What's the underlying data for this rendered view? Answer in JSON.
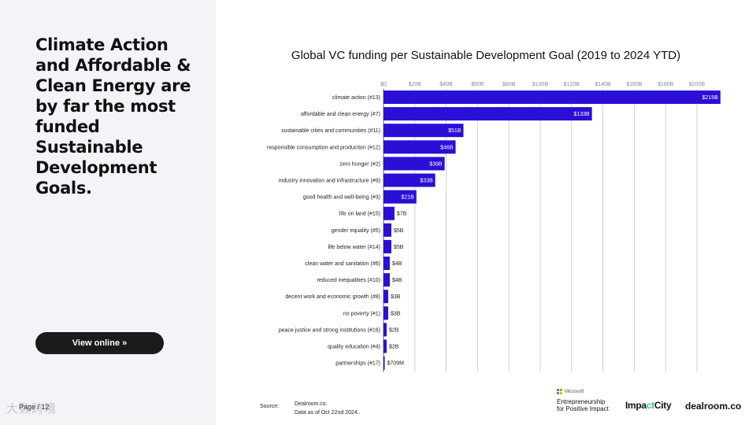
{
  "headline": "Climate Action and Affordable & Clean Energy are by far the most funded Sustainable Development Goals.",
  "view_online_label": "View online »",
  "page_number": "Page / 12",
  "watermark": "大数跨境",
  "source_label": "Source:",
  "source_lines": [
    "Dealroom.co.",
    "Data as of Oct 22nd 2024.."
  ],
  "logos": {
    "microsoft": "Microsoft",
    "efpi_lines": [
      "Entrepreneurship",
      "for Positive Impact"
    ],
    "impactcity_a": "Impa",
    "impactcity_b": "ct",
    "impactcity_c": "City",
    "dealroom": "dealroom.co"
  },
  "colors": {
    "bar": "#2a0fd6",
    "grid": "#c8c8c8",
    "left_panel": "#f3f4f8",
    "button": "#1b1b1b",
    "label_inside": "#ffffff",
    "label_outside": "#222222",
    "ms_red": "#f25022",
    "ms_green": "#7fba00",
    "ms_blue": "#00a4ef",
    "ms_yellow": "#ffb900"
  },
  "chart_data": {
    "type": "bar",
    "orientation": "horizontal",
    "title": "Global VC funding per Sustainable Development Goal (2019 to 2024 YTD)",
    "xlim": [
      0,
      215
    ],
    "x_ticks": [
      0,
      20,
      40,
      60,
      80,
      100,
      120,
      140,
      160,
      180,
      200
    ],
    "x_tick_labels": [
      "$0",
      "$20B",
      "$40B",
      "$60B",
      "$80B",
      "$100B",
      "$120B",
      "$140B",
      "$160B",
      "$180B",
      "$200B"
    ],
    "grid": true,
    "categories": [
      "climate action (#13)",
      "affordable and clean energy (#7)",
      "sustainable cities and communities (#11)",
      "responsible consumption and production (#12)",
      "zero hunger (#2)",
      "industry innovation and infrastructure (#9)",
      "good health and well-being (#3)",
      "life on land (#15)",
      "gender equality (#5)",
      "life below water (#14)",
      "clean water and sanitation (#6)",
      "reduced inequalities (#10)",
      "decent work and economic growth (#8)",
      "no poverty (#1)",
      "peace justice and strong institutions (#16)",
      "quality education (#4)",
      "partnerships (#17)"
    ],
    "values": [
      215,
      133,
      51,
      46,
      39,
      33,
      21,
      7,
      5,
      5,
      4,
      4,
      3,
      3,
      2,
      2,
      0.709
    ],
    "value_labels": [
      "$215B",
      "$133B",
      "$51B",
      "$46B",
      "$39B",
      "$33B",
      "$21B",
      "$7B",
      "$5B",
      "$5B",
      "$4B",
      "$4B",
      "$3B",
      "$3B",
      "$2B",
      "$2B",
      "$709M"
    ]
  }
}
